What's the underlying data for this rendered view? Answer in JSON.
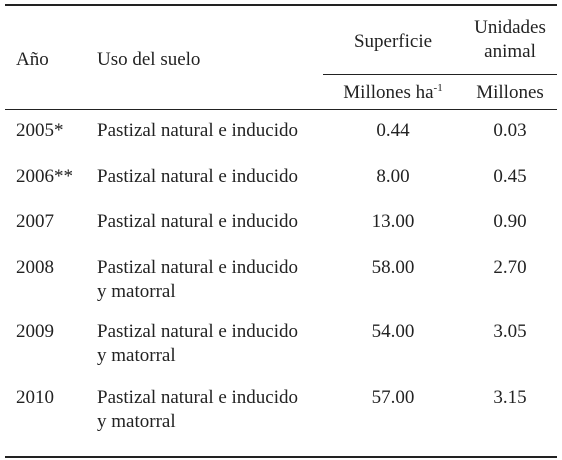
{
  "table": {
    "header": {
      "year": "Año",
      "use": "Uso del suelo",
      "area": "Superficie",
      "units": [
        "Unidades",
        "animal"
      ],
      "area_unit": {
        "text": "Millones ha",
        "sup": "-1"
      },
      "units_unit": "Millones"
    },
    "rows": [
      {
        "year": "2005*",
        "use": [
          "Pastizal natural e inducido"
        ],
        "area": "0.44",
        "units": "0.03"
      },
      {
        "year": "2006**",
        "use": [
          "Pastizal natural e inducido"
        ],
        "area": "8.00",
        "units": "0.45"
      },
      {
        "year": "2007",
        "use": [
          "Pastizal natural e inducido"
        ],
        "area": "13.00",
        "units": "0.90"
      },
      {
        "year": "2008",
        "use": [
          "Pastizal natural e inducido",
          "y matorral"
        ],
        "area": "58.00",
        "units": "2.70"
      },
      {
        "year": "2009",
        "use": [
          "Pastizal natural e inducido",
          "y matorral"
        ],
        "area": "54.00",
        "units": "3.05"
      },
      {
        "year": "2010",
        "use": [
          "Pastizal natural e inducido",
          "y matorral"
        ],
        "area": "57.00",
        "units": "3.15"
      }
    ]
  }
}
